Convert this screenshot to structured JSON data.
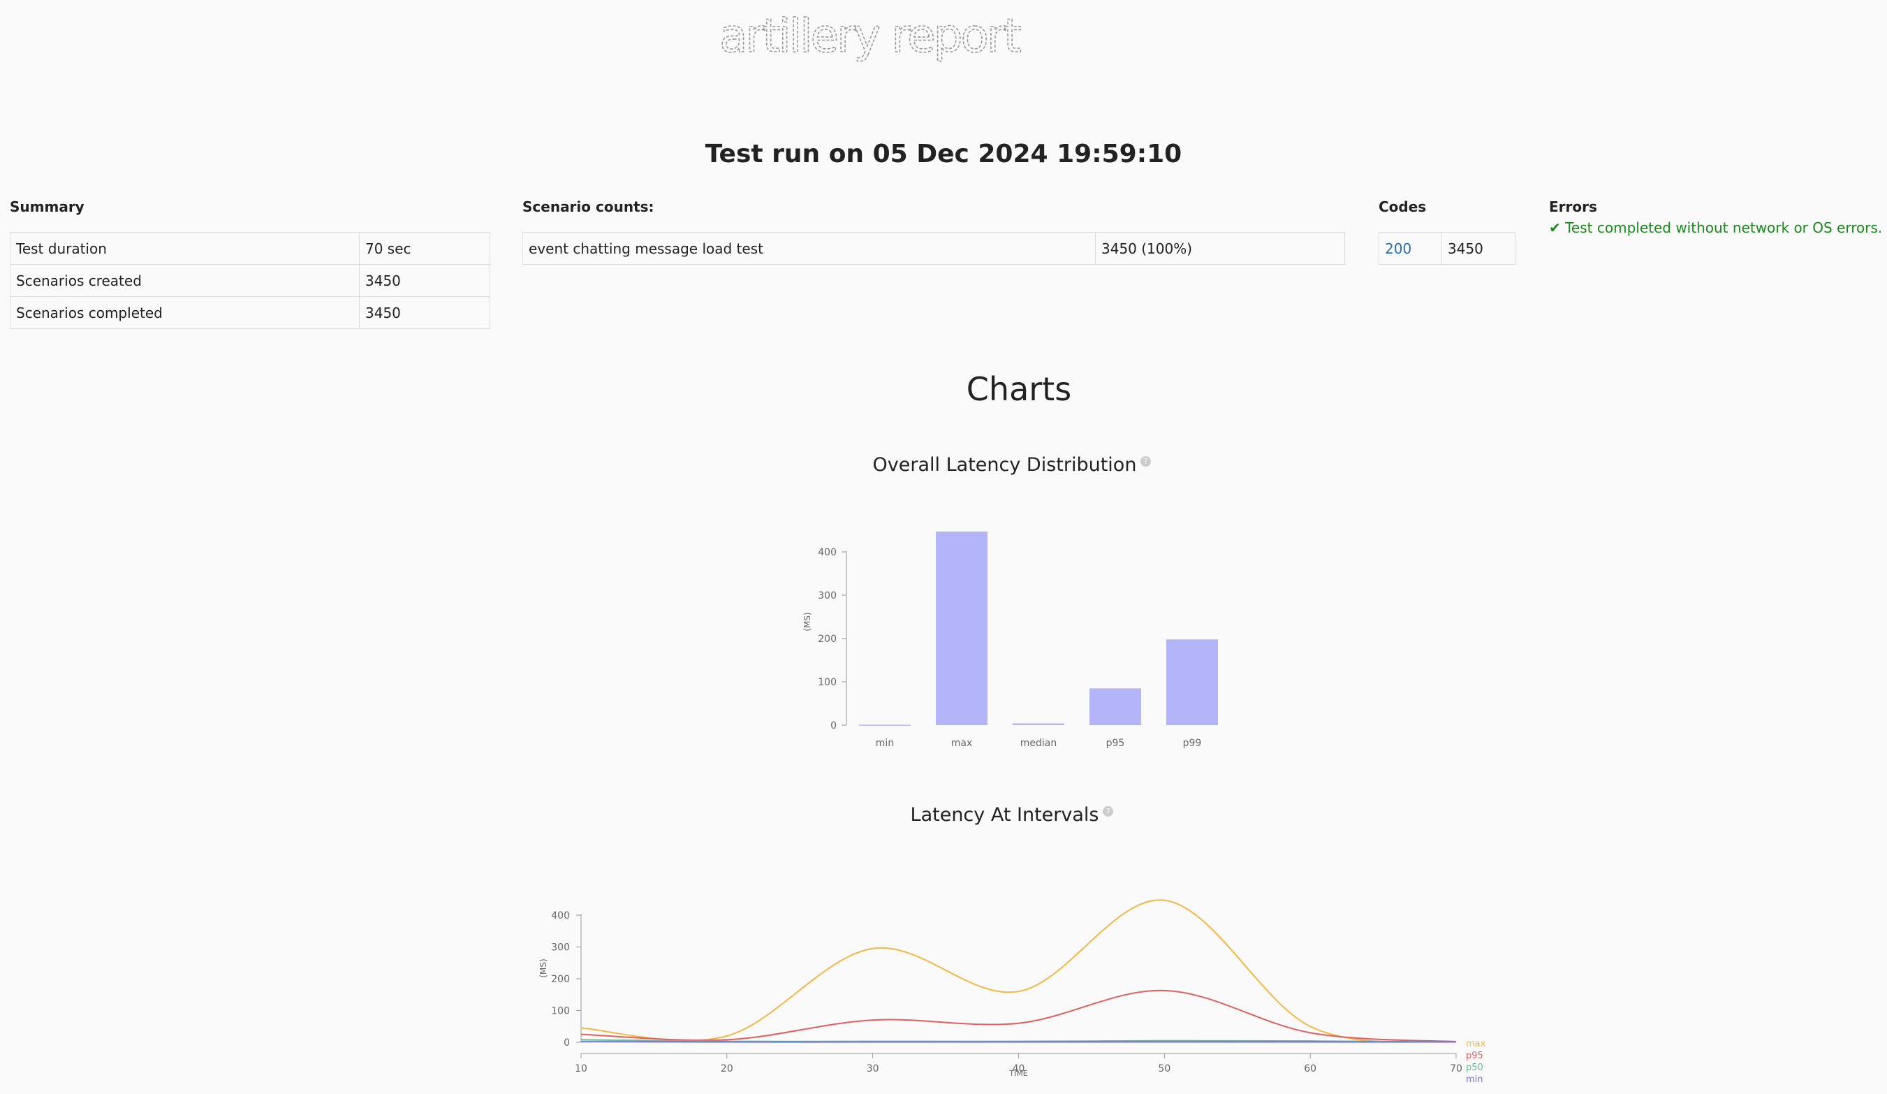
{
  "header": {
    "logo_text": "artillery report",
    "run_title": "Test run on 05 Dec 2024 19:59:10"
  },
  "summary": {
    "title": "Summary",
    "rows": [
      {
        "label": "Test duration",
        "value": "70 sec"
      },
      {
        "label": "Scenarios created",
        "value": "3450"
      },
      {
        "label": "Scenarios completed",
        "value": "3450"
      }
    ]
  },
  "scenario_counts": {
    "title": "Scenario counts:",
    "rows": [
      {
        "label": "event chatting message load test",
        "value": "3450 (100%)"
      }
    ]
  },
  "codes": {
    "title": "Codes",
    "rows": [
      {
        "code": "200",
        "count": "3450"
      }
    ]
  },
  "errors": {
    "title": "Errors",
    "message": "✔ Test completed without network or OS errors."
  },
  "charts_heading": "Charts",
  "colors": {
    "bar": "#b3b5f8",
    "max": "#f5b744",
    "p95": "#e06060",
    "p50": "#5fc08f",
    "min": "#7a6de0",
    "axis": "#999999"
  },
  "chart_data": [
    {
      "type": "bar",
      "title": "Overall Latency Distribution",
      "ylabel": "(MS)",
      "categories": [
        "min",
        "max",
        "median",
        "p95",
        "p99"
      ],
      "values": [
        1,
        447,
        4,
        85,
        198
      ],
      "ylim": [
        0,
        400
      ],
      "yticks": [
        0,
        100,
        200,
        300,
        400
      ],
      "grid": false
    },
    {
      "type": "line",
      "title": "Latency At Intervals",
      "xlabel": "TIME",
      "ylabel": "(MS)",
      "x": [
        10,
        20,
        30,
        40,
        50,
        60,
        70
      ],
      "xlim": [
        10,
        70
      ],
      "ylim": [
        0,
        400
      ],
      "yticks": [
        0,
        100,
        200,
        300,
        400
      ],
      "xticks": [
        10,
        20,
        30,
        40,
        50,
        60,
        70
      ],
      "legend": "right",
      "grid": false,
      "series": [
        {
          "name": "max",
          "values": [
            45,
            20,
            295,
            160,
            447,
            50,
            2
          ]
        },
        {
          "name": "p95",
          "values": [
            25,
            8,
            70,
            60,
            163,
            30,
            2
          ]
        },
        {
          "name": "p50",
          "values": [
            8,
            3,
            3,
            3,
            5,
            4,
            1
          ]
        },
        {
          "name": "min",
          "values": [
            2,
            1,
            1,
            1,
            1,
            1,
            1
          ]
        }
      ]
    }
  ]
}
